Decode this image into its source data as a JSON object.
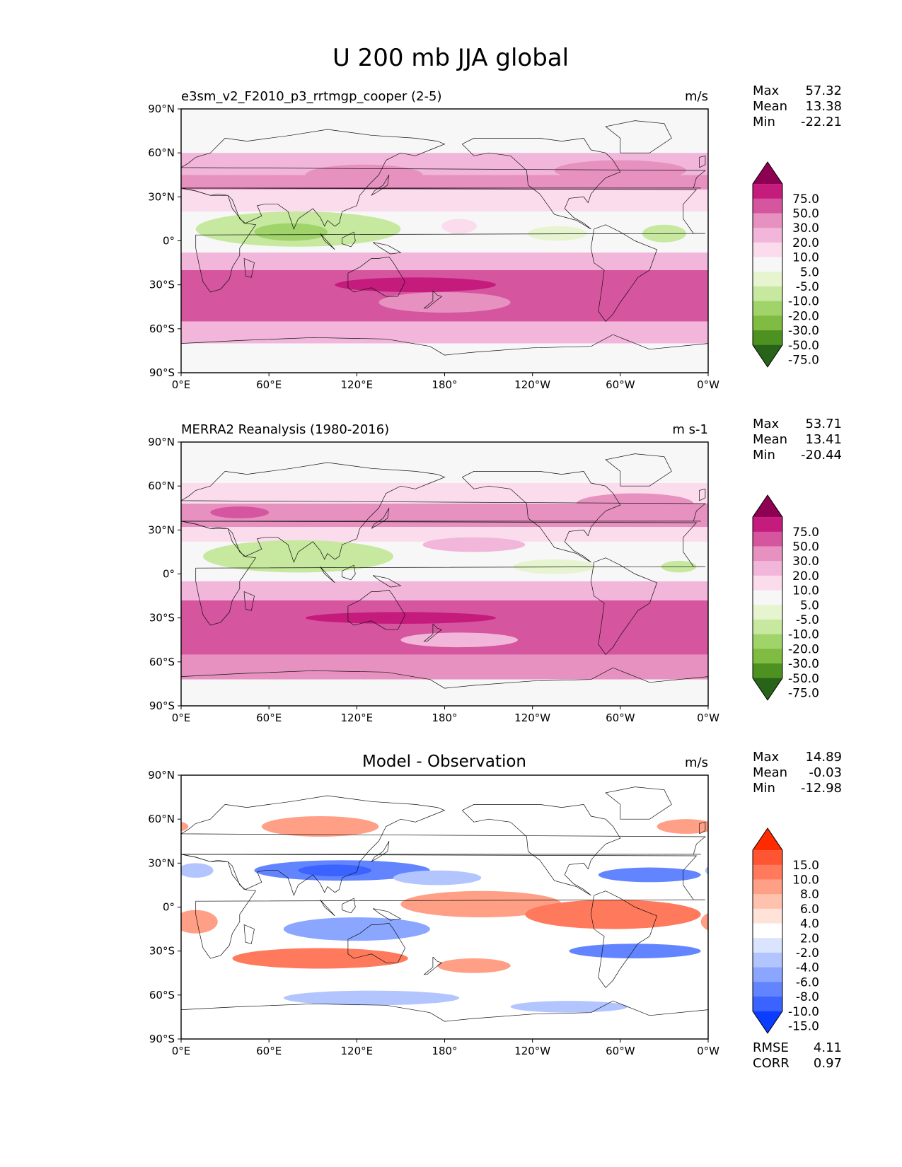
{
  "figure_title": "U 200 mb JJA global",
  "chart_data": [
    {
      "type": "heatmap",
      "panel": "test",
      "title": "",
      "left_title": "e3sm_v2_F2010_p3_rrtmgp_cooper (2-5)",
      "units": "m/s",
      "stats": [
        {
          "label": "Max",
          "value": "57.32"
        },
        {
          "label": "Mean",
          "value": "13.38"
        },
        {
          "label": "Min",
          "value": "-22.21"
        }
      ],
      "colorbar": {
        "labels": [
          "75.0",
          "50.0",
          "30.0",
          "20.0",
          "10.0",
          "5.0",
          "-5.0",
          "-10.0",
          "-20.0",
          "-30.0",
          "-50.0",
          "-75.0"
        ],
        "colors": [
          "#8e0152",
          "#c51b7d",
          "#d6559f",
          "#e691bf",
          "#f1b6da",
          "#fadcec",
          "#f7f7f7",
          "#e6f5d0",
          "#c7e89f",
          "#a0d46a",
          "#7fbc41",
          "#4d9221",
          "#276419"
        ]
      },
      "bands": [
        {
          "lat": [
            60,
            90
          ],
          "level": 6
        },
        {
          "lat": [
            45,
            60
          ],
          "level": 4
        },
        {
          "lat": [
            35,
            45
          ],
          "level": 3
        },
        {
          "lat": [
            20,
            35
          ],
          "level": 5
        },
        {
          "lat": [
            -8,
            20
          ],
          "level": 6
        },
        {
          "lat": [
            -20,
            -8
          ],
          "level": 4
        },
        {
          "lat": [
            -55,
            -20
          ],
          "level": 2
        },
        {
          "lat": [
            -70,
            -55
          ],
          "level": 4
        },
        {
          "lat": [
            -90,
            -70
          ],
          "level": 6
        }
      ],
      "blobs": [
        {
          "lon": 80,
          "lat": 8,
          "rx": 70,
          "ry": 12,
          "level": 8
        },
        {
          "lon": 75,
          "lat": 6,
          "rx": 25,
          "ry": 6,
          "level": 9
        },
        {
          "lon": 125,
          "lat": 45,
          "rx": 40,
          "ry": 7,
          "level": 3
        },
        {
          "lon": 160,
          "lat": -30,
          "rx": 55,
          "ry": 5,
          "level": 1
        },
        {
          "lon": 330,
          "lat": 5,
          "rx": 15,
          "ry": 6,
          "level": 8
        },
        {
          "lon": 257,
          "lat": 5,
          "rx": 20,
          "ry": 5,
          "level": 7
        },
        {
          "lon": 300,
          "lat": 48,
          "rx": 45,
          "ry": 7,
          "level": 3
        },
        {
          "lon": 180,
          "lat": -42,
          "rx": 45,
          "ry": 7,
          "level": 3
        },
        {
          "lon": 190,
          "lat": 10,
          "rx": 12,
          "ry": 5,
          "level": 5
        }
      ],
      "lon_ticks": [
        "0°E",
        "60°E",
        "120°E",
        "180°",
        "120°W",
        "60°W",
        "0°W"
      ],
      "lat_ticks": [
        "90°N",
        "60°N",
        "30°N",
        "0°",
        "30°S",
        "60°S",
        "90°S"
      ]
    },
    {
      "type": "heatmap",
      "panel": "reference",
      "title": "",
      "left_title": "MERRA2 Reanalysis (1980-2016)",
      "units": "m s-1",
      "stats": [
        {
          "label": "Max",
          "value": "53.71"
        },
        {
          "label": "Mean",
          "value": "13.41"
        },
        {
          "label": "Min",
          "value": "-20.44"
        }
      ],
      "colorbar": {
        "labels": [
          "75.0",
          "50.0",
          "30.0",
          "20.0",
          "10.0",
          "5.0",
          "-5.0",
          "-10.0",
          "-20.0",
          "-30.0",
          "-50.0",
          "-75.0"
        ],
        "colors": [
          "#8e0152",
          "#c51b7d",
          "#d6559f",
          "#e691bf",
          "#f1b6da",
          "#fadcec",
          "#f7f7f7",
          "#e6f5d0",
          "#c7e89f",
          "#a0d46a",
          "#7fbc41",
          "#4d9221",
          "#276419"
        ]
      },
      "bands": [
        {
          "lat": [
            62,
            90
          ],
          "level": 6
        },
        {
          "lat": [
            48,
            62
          ],
          "level": 5
        },
        {
          "lat": [
            32,
            48
          ],
          "level": 3
        },
        {
          "lat": [
            22,
            32
          ],
          "level": 5
        },
        {
          "lat": [
            -5,
            22
          ],
          "level": 6
        },
        {
          "lat": [
            -18,
            -5
          ],
          "level": 4
        },
        {
          "lat": [
            -55,
            -18
          ],
          "level": 2
        },
        {
          "lat": [
            -72,
            -55
          ],
          "level": 3
        },
        {
          "lat": [
            -90,
            -72
          ],
          "level": 6
        }
      ],
      "blobs": [
        {
          "lon": 80,
          "lat": 12,
          "rx": 65,
          "ry": 11,
          "level": 8
        },
        {
          "lon": 150,
          "lat": -30,
          "rx": 65,
          "ry": 4,
          "level": 1
        },
        {
          "lon": 310,
          "lat": 48,
          "rx": 40,
          "ry": 7,
          "level": 3
        },
        {
          "lon": 200,
          "lat": 20,
          "rx": 35,
          "ry": 5,
          "level": 4
        },
        {
          "lon": 255,
          "lat": 5,
          "rx": 28,
          "ry": 5,
          "level": 7
        },
        {
          "lon": 340,
          "lat": 5,
          "rx": 12,
          "ry": 4,
          "level": 8
        },
        {
          "lon": 190,
          "lat": -45,
          "rx": 40,
          "ry": 5,
          "level": 4
        },
        {
          "lon": 40,
          "lat": 42,
          "rx": 20,
          "ry": 4,
          "level": 2
        }
      ],
      "lon_ticks": [
        "0°E",
        "60°E",
        "120°E",
        "180°",
        "120°W",
        "60°W",
        "0°W"
      ],
      "lat_ticks": [
        "90°N",
        "60°N",
        "30°N",
        "0°",
        "30°S",
        "60°S",
        "90°S"
      ]
    },
    {
      "type": "heatmap",
      "panel": "difference",
      "title": "Model - Observation",
      "left_title": "",
      "units": "m/s",
      "stats": [
        {
          "label": "Max",
          "value": "14.89"
        },
        {
          "label": "Mean",
          "value": "-0.03"
        },
        {
          "label": "Min",
          "value": "-12.98"
        }
      ],
      "extra_stats": [
        {
          "label": "RMSE",
          "value": "4.11"
        },
        {
          "label": "CORR",
          "value": "0.97"
        }
      ],
      "colorbar": {
        "labels": [
          "15.0",
          "10.0",
          "8.0",
          "6.0",
          "4.0",
          "2.0",
          "-2.0",
          "-4.0",
          "-6.0",
          "-8.0",
          "-10.0",
          "-15.0"
        ],
        "colors": [
          "#ff2a00",
          "#ff5533",
          "#ff7a5c",
          "#ff9f85",
          "#ffc2ad",
          "#ffe3d9",
          "#ffffff",
          "#dbe4ff",
          "#b3c5ff",
          "#8aa6ff",
          "#6285ff",
          "#3a63ff",
          "#0a3dff"
        ]
      },
      "bands": [
        {
          "lat": [
            -90,
            90
          ],
          "level": 6
        }
      ],
      "blobs": [
        {
          "lon": 95,
          "lat": 55,
          "rx": 40,
          "ry": 7,
          "level": 3
        },
        {
          "lon": 110,
          "lat": 25,
          "rx": 60,
          "ry": 7,
          "level": 10
        },
        {
          "lon": 105,
          "lat": 25,
          "rx": 25,
          "ry": 4,
          "level": 11
        },
        {
          "lon": 175,
          "lat": 20,
          "rx": 30,
          "ry": 5,
          "level": 8
        },
        {
          "lon": 320,
          "lat": 22,
          "rx": 35,
          "ry": 5,
          "level": 10
        },
        {
          "lon": 205,
          "lat": 2,
          "rx": 55,
          "ry": 9,
          "level": 3
        },
        {
          "lon": 295,
          "lat": -5,
          "rx": 60,
          "ry": 10,
          "level": 2
        },
        {
          "lon": 95,
          "lat": -35,
          "rx": 60,
          "ry": 7,
          "level": 2
        },
        {
          "lon": 120,
          "lat": -15,
          "rx": 50,
          "ry": 8,
          "level": 9
        },
        {
          "lon": 310,
          "lat": -30,
          "rx": 45,
          "ry": 5,
          "level": 10
        },
        {
          "lon": 130,
          "lat": -62,
          "rx": 60,
          "ry": 5,
          "level": 8
        },
        {
          "lon": 265,
          "lat": -68,
          "rx": 40,
          "ry": 4,
          "level": 8
        },
        {
          "lon": 10,
          "lat": -10,
          "rx": 15,
          "ry": 8,
          "level": 3
        },
        {
          "lon": 200,
          "lat": -40,
          "rx": 25,
          "ry": 5,
          "level": 3
        },
        {
          "lon": 10,
          "lat": 25,
          "rx": 12,
          "ry": 5,
          "level": 8
        },
        {
          "lon": 345,
          "lat": 55,
          "rx": 20,
          "ry": 5,
          "level": 3
        }
      ],
      "lon_ticks": [
        "0°E",
        "60°E",
        "120°E",
        "180°",
        "120°W",
        "60°W",
        "0°W"
      ],
      "lat_ticks": [
        "90°N",
        "60°N",
        "30°N",
        "0°",
        "30°S",
        "60°S",
        "90°S"
      ]
    }
  ]
}
